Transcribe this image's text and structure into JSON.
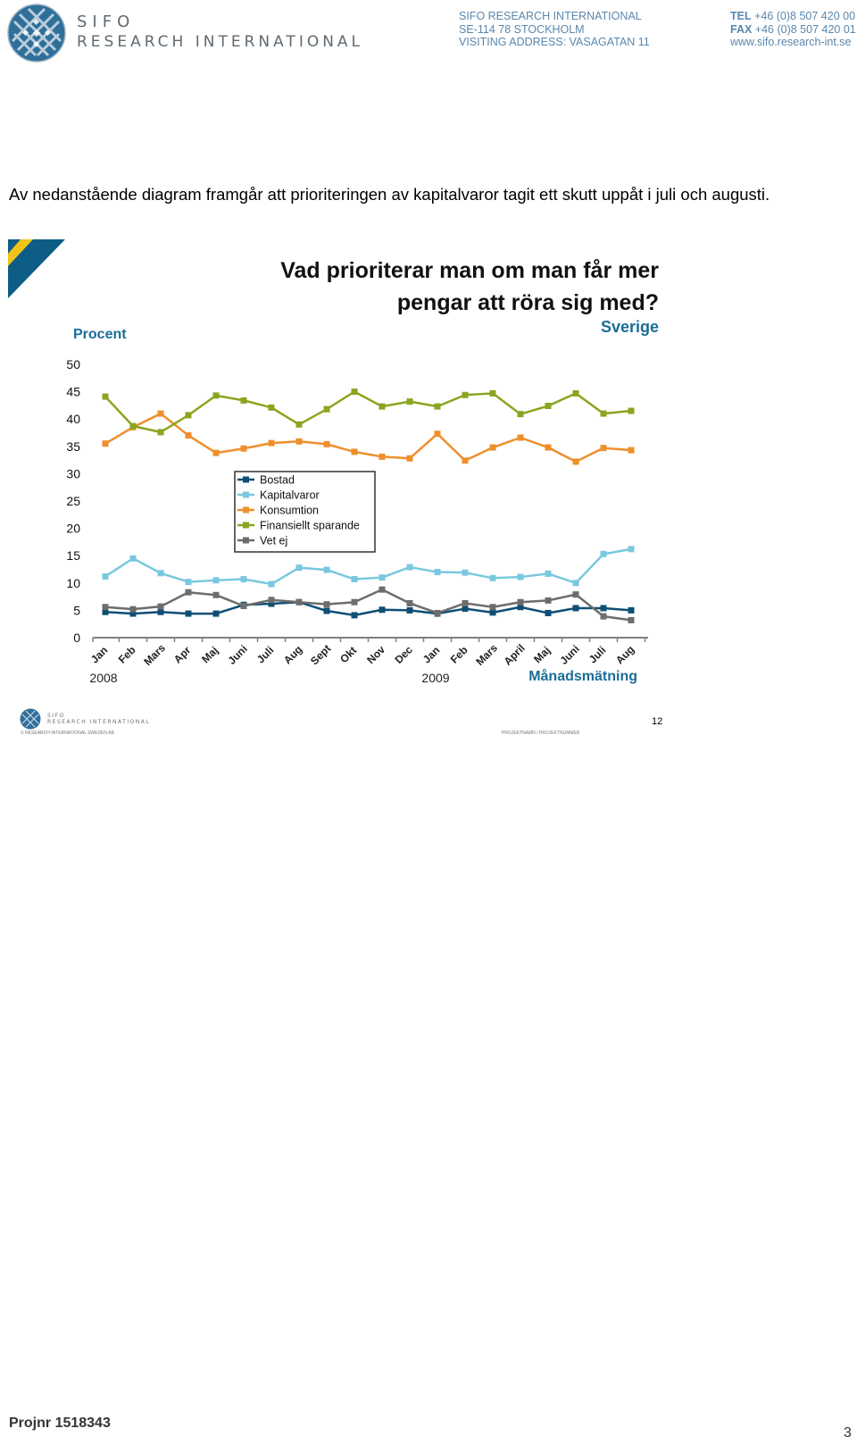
{
  "header": {
    "logo_line1": "SIFO",
    "logo_line2": "RESEARCH INTERNATIONAL",
    "company": [
      "SIFO RESEARCH INTERNATIONAL",
      "SE-114 78 STOCKHOLM",
      "VISITING ADDRESS: VASAGATAN 11"
    ],
    "tel_label": "TEL",
    "tel": "+46 (0)8 507 420 00",
    "fax_label": "FAX",
    "fax": "+46 (0)8 507 420 01",
    "web": "www.sifo.research-int.se"
  },
  "intro_text": "Av nedanstående diagram framgår att prioriteringen av kapitalvaror tagit ett skutt uppåt i juli och augusti.",
  "slide": {
    "title": "Vad prioriterar man om man får mer pengar att röra sig med?",
    "subtitle": "Sverige",
    "footer_logo_line1": "SIFO",
    "footer_logo_line2": "RESEARCH INTERNATIONAL",
    "footer_copyright": "© RESEARCH INTERNATIONAL SWEDEN AB",
    "footer_project": "PROJEKTNAMN / PROJEKTNUMMER",
    "slide_number": "12"
  },
  "page_footer": {
    "projnr": "Projnr 1518343",
    "page_number": "3"
  },
  "colors": {
    "Bostad": "#0e4e75",
    "Kapitalvaror": "#79c8df",
    "Konsumtion": "#ee8f2c",
    "Finansiellt sparande": "#8aa51f",
    "Vet ej": "#6d6d6d",
    "accent_blue": "#1b6d96"
  },
  "chart_data": {
    "type": "line",
    "ylabel": "Procent",
    "xlabel": "Månadsmätning",
    "ylim": [
      0,
      50
    ],
    "yticks": [
      0,
      5,
      10,
      15,
      20,
      25,
      30,
      35,
      40,
      45,
      50
    ],
    "grid": false,
    "legend_position": "center",
    "categories": [
      "Jan",
      "Feb",
      "Mars",
      "Apr",
      "Maj",
      "Juni",
      "Juli",
      "Aug",
      "Sept",
      "Okt",
      "Nov",
      "Dec",
      "Jan",
      "Feb",
      "Mars",
      "April",
      "Maj",
      "Juni",
      "Juli",
      "Aug"
    ],
    "year_labels": [
      {
        "index": 0,
        "label": "2008"
      },
      {
        "index": 12,
        "label": "2009"
      }
    ],
    "series": [
      {
        "name": "Bostad",
        "values": [
          4.7,
          4.4,
          4.7,
          4.4,
          4.4,
          6.0,
          6.2,
          6.5,
          4.9,
          4.1,
          5.1,
          5.0,
          4.4,
          5.3,
          4.6,
          5.6,
          4.5,
          5.4,
          5.4,
          5.0
        ]
      },
      {
        "name": "Kapitalvaror",
        "values": [
          11.2,
          14.5,
          11.8,
          10.2,
          10.5,
          10.7,
          9.8,
          12.8,
          12.4,
          10.7,
          11.0,
          12.9,
          12.0,
          11.9,
          10.9,
          11.1,
          11.7,
          10.0,
          15.3,
          16.2
        ]
      },
      {
        "name": "Konsumtion",
        "values": [
          35.5,
          38.5,
          41.0,
          37.0,
          33.8,
          34.6,
          35.6,
          35.9,
          35.4,
          34.0,
          33.1,
          32.8,
          37.3,
          32.4,
          34.8,
          36.6,
          34.8,
          32.2,
          34.7,
          34.3
        ]
      },
      {
        "name": "Finansiellt sparande",
        "values": [
          44.1,
          38.7,
          37.6,
          40.7,
          44.3,
          43.4,
          42.1,
          39.0,
          41.8,
          45.0,
          42.3,
          43.2,
          42.3,
          44.4,
          44.7,
          40.9,
          42.4,
          44.7,
          41.0,
          41.5
        ]
      },
      {
        "name": "Vet ej",
        "values": [
          5.6,
          5.2,
          5.7,
          8.3,
          7.8,
          5.8,
          6.9,
          6.5,
          6.1,
          6.5,
          8.8,
          6.3,
          4.5,
          6.3,
          5.6,
          6.5,
          6.8,
          7.9,
          3.9,
          3.2
        ]
      }
    ]
  }
}
